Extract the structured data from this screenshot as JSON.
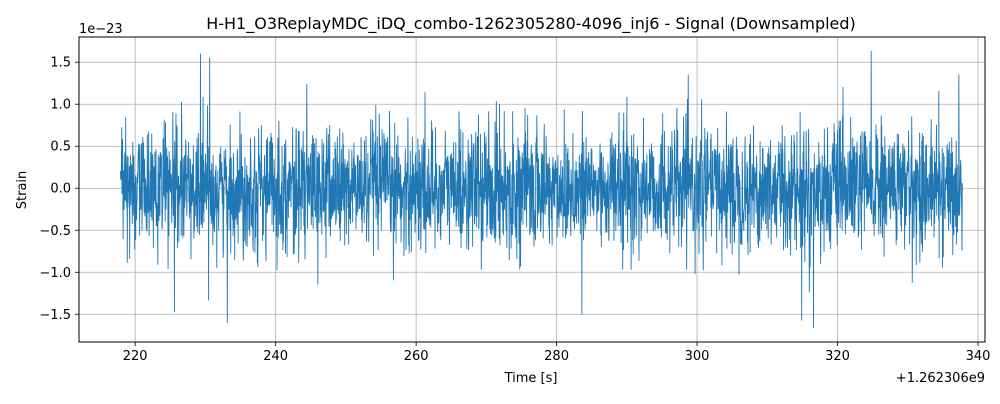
{
  "chart_data": {
    "type": "line",
    "title": "H-H1_O3ReplayMDC_iDQ_combo-1262305280-4096_inj6 - Signal (Downsampled)",
    "xlabel": "Time [s]",
    "ylabel": "Strain",
    "x_offset_label": "+1.262306e9",
    "y_scale_label": "1e−23",
    "xlim": [
      212,
      341
    ],
    "ylim": [
      -1.83,
      1.8
    ],
    "x_ticks": [
      220,
      240,
      260,
      280,
      300,
      320,
      340
    ],
    "x_tick_labels": [
      "220",
      "240",
      "260",
      "280",
      "300",
      "320",
      "340"
    ],
    "y_ticks": [
      -1.5,
      -1.0,
      -0.5,
      0.0,
      0.5,
      1.0,
      1.5
    ],
    "y_tick_labels": [
      "−1.5",
      "−1.0",
      "−0.5",
      "0.0",
      "0.5",
      "1.0",
      "1.5"
    ],
    "grid": true,
    "line_color": "#1f77b4",
    "series_summary": {
      "x_start": 217.9,
      "x_end": 337.8,
      "typical_envelope": [
        -0.8,
        0.8
      ],
      "peaks": [
        {
          "x": 229.3,
          "y": 1.6
        },
        {
          "x": 230.6,
          "y": 1.55
        },
        {
          "x": 324.8,
          "y": 1.63
        },
        {
          "x": 233.1,
          "y": -1.6
        },
        {
          "x": 316.6,
          "y": -1.66
        },
        {
          "x": 314.9,
          "y": -1.57
        },
        {
          "x": 225.6,
          "y": -1.47
        },
        {
          "x": 283.6,
          "y": -1.5
        }
      ]
    }
  }
}
